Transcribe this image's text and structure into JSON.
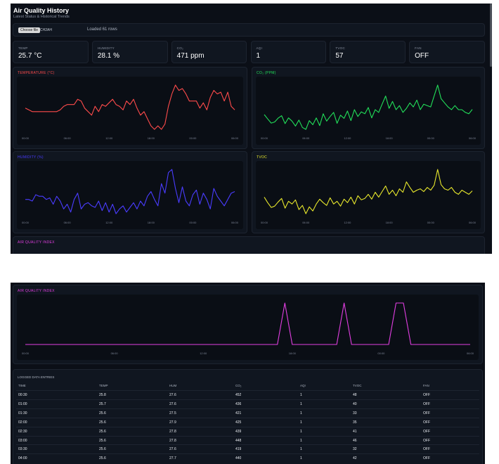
{
  "header": {
    "title": "Air Quality History",
    "subtitle": "Latest Status & Historical Trends"
  },
  "file": {
    "button": "Choose file",
    "name": "CH2AH",
    "status": "Loaded 61 rows"
  },
  "stats": [
    {
      "label": "TEMP",
      "value": "25.7 °C"
    },
    {
      "label": "HUMIDITY",
      "value": "28.1 %"
    },
    {
      "label": "CO₂",
      "value": "471 ppm"
    },
    {
      "label": "AQI",
      "value": "1"
    },
    {
      "label": "TVOC",
      "value": "57"
    },
    {
      "label": "FAN",
      "value": "OFF"
    }
  ],
  "time_labels": [
    "00:00",
    "06:00",
    "12:00",
    "18:00",
    "00:00",
    "06:00"
  ],
  "charts": [
    {
      "title": "TEMPERATURE (°C)",
      "color": "#ff4b4b",
      "values": [
        25.8,
        25.7,
        25.6,
        25.6,
        25.6,
        25.6,
        25.6,
        25.6,
        25.6,
        25.6,
        25.7,
        25.9,
        26.0,
        26.0,
        26.0,
        26.3,
        26.2,
        25.8,
        25.6,
        25.4,
        25.9,
        25.6,
        26.0,
        25.9,
        26.1,
        26.3,
        26.0,
        25.9,
        25.7,
        26.2,
        26.0,
        26.3,
        25.8,
        25.4,
        25.6,
        25.2,
        24.8,
        24.6,
        24.8,
        24.6,
        24.9,
        25.9,
        26.6,
        27.1,
        26.8,
        26.9,
        26.6,
        26.2,
        26.2,
        26.2,
        25.8,
        26.1,
        25.7,
        26.4,
        26.8,
        26.6,
        26.7,
        26.2,
        26.7,
        25.9,
        25.7
      ]
    },
    {
      "title": "CO₂ (PPM)",
      "color": "#22e05a",
      "values": [
        452,
        436,
        421,
        425,
        439,
        448,
        419,
        440,
        428,
        410,
        432,
        405,
        398,
        430,
        415,
        440,
        412,
        455,
        428,
        445,
        460,
        420,
        450,
        438,
        465,
        430,
        470,
        445,
        462,
        455,
        478,
        440,
        470,
        460,
        490,
        520,
        475,
        500,
        470,
        485,
        460,
        475,
        495,
        480,
        505,
        470,
        490,
        485,
        480,
        520,
        560,
        510,
        495,
        480,
        470,
        485,
        470,
        470,
        460,
        455,
        471
      ]
    },
    {
      "title": "HUMIDITY (%)",
      "color": "#4a3cff",
      "values": [
        27.6,
        27.6,
        27.5,
        27.9,
        27.8,
        27.8,
        27.6,
        27.7,
        27.3,
        27.8,
        27.5,
        27.0,
        27.3,
        26.8,
        27.6,
        28.0,
        27.0,
        27.3,
        27.4,
        27.2,
        27.1,
        27.5,
        26.9,
        27.4,
        26.8,
        27.3,
        26.7,
        27.0,
        27.2,
        26.8,
        27.1,
        27.4,
        27.0,
        27.5,
        27.2,
        27.8,
        28.1,
        27.6,
        27.2,
        28.6,
        28.0,
        29.3,
        29.5,
        28.3,
        27.4,
        28.4,
        27.5,
        27.2,
        27.9,
        28.2,
        27.3,
        28.0,
        27.6,
        27.0,
        28.3,
        27.8,
        27.5,
        27.2,
        27.6,
        28.0,
        28.1
      ]
    },
    {
      "title": "TVOC",
      "color": "#e8e82c",
      "values": [
        48,
        40,
        33,
        35,
        41,
        46,
        32,
        42,
        38,
        44,
        30,
        36,
        24,
        34,
        28,
        38,
        45,
        40,
        36,
        47,
        38,
        42,
        35,
        45,
        40,
        48,
        38,
        50,
        44,
        46,
        52,
        45,
        55,
        48,
        56,
        64,
        52,
        58,
        50,
        60,
        55,
        70,
        62,
        55,
        58,
        60,
        56,
        62,
        58,
        65,
        88,
        66,
        60,
        58,
        62,
        55,
        52,
        58,
        55,
        52,
        57
      ]
    },
    {
      "title": "AIR QUALITY INDEX",
      "color": "#e03ee0",
      "values": [
        1,
        1,
        1,
        1,
        1,
        1,
        1,
        1,
        1,
        1,
        1,
        1,
        1,
        1,
        1,
        1,
        1,
        1,
        1,
        1,
        1,
        1,
        1,
        1,
        1,
        1,
        1,
        1,
        1,
        1,
        1,
        1,
        1,
        1,
        1,
        3,
        1,
        1,
        1,
        1,
        1,
        1,
        1,
        3,
        1,
        1,
        1,
        1,
        1,
        1,
        3,
        3,
        1,
        1,
        1,
        1,
        1,
        1,
        1,
        1,
        1
      ]
    }
  ],
  "table": {
    "title": "LOGGED DATA ENTRIES",
    "columns": [
      "TIME",
      "TEMP",
      "HUM",
      "CO₂",
      "AQI",
      "TVOC",
      "FAN"
    ],
    "rows": [
      [
        "00:30",
        25.8,
        27.6,
        452,
        1,
        48,
        "OFF"
      ],
      [
        "01:00",
        25.7,
        27.6,
        436,
        1,
        40,
        "OFF"
      ],
      [
        "01:30",
        25.6,
        27.5,
        421,
        1,
        33,
        "OFF"
      ],
      [
        "02:00",
        25.6,
        27.9,
        425,
        1,
        35,
        "OFF"
      ],
      [
        "02:30",
        25.6,
        27.8,
        439,
        1,
        41,
        "OFF"
      ],
      [
        "03:00",
        25.6,
        27.8,
        448,
        1,
        46,
        "OFF"
      ],
      [
        "03:30",
        25.6,
        27.6,
        419,
        1,
        32,
        "OFF"
      ],
      [
        "04:00",
        25.6,
        27.7,
        440,
        1,
        42,
        "OFF"
      ]
    ]
  }
}
